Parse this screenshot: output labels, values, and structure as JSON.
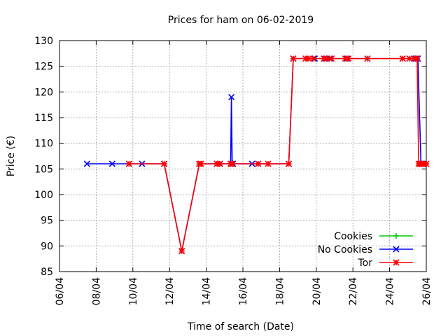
{
  "chart_data": {
    "type": "line",
    "title": "Prices for ham on 06-02-2019",
    "xlabel": "Time of search (Date)",
    "ylabel": "Price (€)",
    "x_ticks": [
      "06/04",
      "08/04",
      "10/04",
      "12/04",
      "14/04",
      "16/04",
      "18/04",
      "20/04",
      "22/04",
      "24/04",
      "26/04"
    ],
    "xlim": [
      "06/04",
      "26/04"
    ],
    "ylim": [
      85,
      130
    ],
    "y_ticks": [
      85,
      90,
      95,
      100,
      105,
      110,
      115,
      120,
      125,
      130
    ],
    "grid": true,
    "legend_position": "bottom-right",
    "series": [
      {
        "name": "Cookies",
        "color": "#00cc00",
        "marker": "plus",
        "x": [],
        "y": []
      },
      {
        "name": "No Cookies",
        "color": "#0000ff",
        "marker": "x",
        "x": [
          "07/04 12:00",
          "08/04 21:00",
          "09/04 19:00",
          "10/04 12:00",
          "11/04 17:00",
          "12/04 16:00",
          "13/04 15:00",
          "14/04 14:00",
          "14/04 18:00",
          "15/04 08:00",
          "15/04 09:00",
          "15/04 10:00",
          "15/04 11:00",
          "16/04 12:00",
          "16/04 20:00",
          "18/04 12:00",
          "18/04 18:00",
          "19/04 22:00",
          "20/04 12:00",
          "20/04 18:00",
          "21/04 16:00",
          "22/04 19:00",
          "24/04 17:00",
          "25/04 02:00",
          "25/04 10:00",
          "25/04 13:00",
          "25/04 17:00",
          "25/04 19:00",
          "25/04 21:00"
        ],
        "y": [
          106,
          106,
          106,
          106,
          106,
          89,
          106,
          106,
          106,
          106,
          119,
          106,
          106,
          106,
          106,
          106,
          126.5,
          126.5,
          126.5,
          126.5,
          126.5,
          126.5,
          126.5,
          126.5,
          126.5,
          126.5,
          106,
          106,
          106
        ]
      },
      {
        "name": "Tor",
        "color": "#ff0000",
        "marker": "star",
        "x": [
          "09/04 19:00",
          "11/04 17:00",
          "12/04 16:00",
          "13/04 15:00",
          "13/04 17:00",
          "14/04 14:00",
          "14/04 18:00",
          "15/04 08:00",
          "15/04 10:00",
          "16/04 20:00",
          "17/04 09:00",
          "18/04 12:00",
          "18/04 18:00",
          "19/04 10:00",
          "19/04 14:00",
          "19/04 20:00",
          "20/04 10:00",
          "20/04 14:00",
          "20/04 20:00",
          "21/04 14:00",
          "21/04 18:00",
          "22/04 19:00",
          "24/04 17:00",
          "25/04 02:00",
          "25/04 08:00",
          "25/04 12:00",
          "25/04 14:00",
          "25/04 16:00",
          "25/04 18:00",
          "25/04 20:00",
          "26/04 00:00"
        ],
        "y": [
          106,
          106,
          89,
          106,
          106,
          106,
          106,
          106,
          106,
          106,
          106,
          106,
          126.5,
          126.5,
          126.5,
          126.5,
          126.5,
          126.5,
          126.5,
          126.5,
          126.5,
          126.5,
          126.5,
          126.5,
          126.5,
          126.5,
          106,
          106,
          106,
          106,
          106
        ]
      }
    ]
  }
}
